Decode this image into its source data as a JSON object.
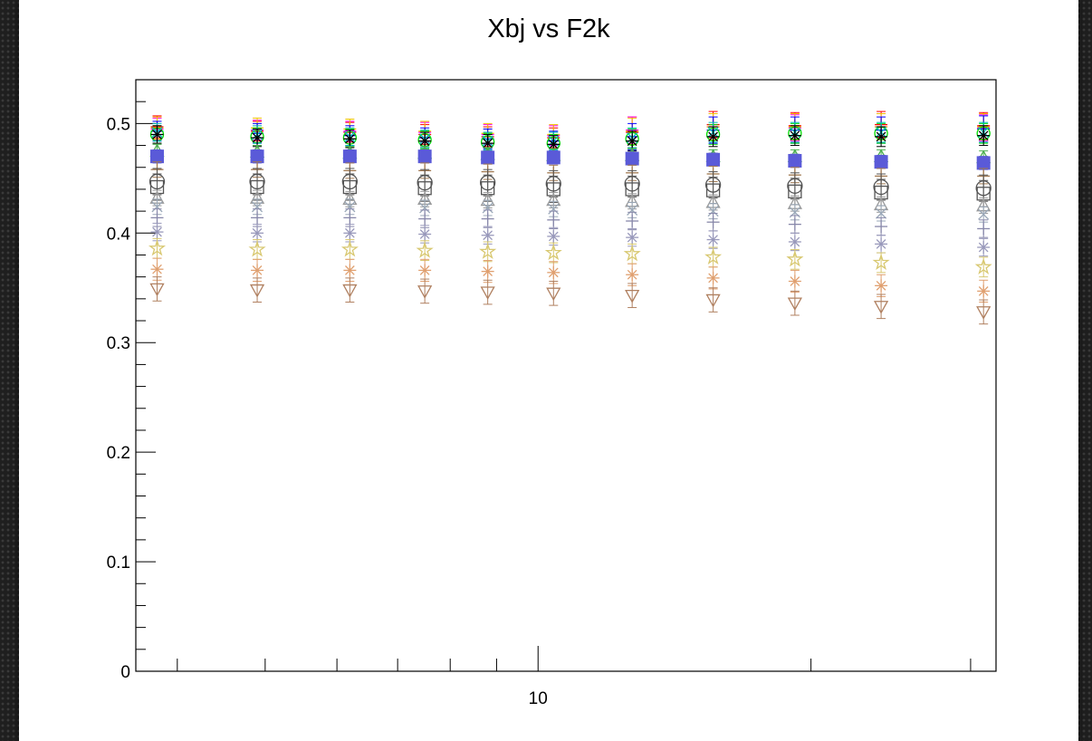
{
  "chart_data": {
    "type": "scatter",
    "title": "Xbj vs F2k",
    "xlabel": "",
    "ylabel": "",
    "x_scale": "log",
    "xlim": [
      3.6,
      32
    ],
    "ylim": [
      0,
      0.54
    ],
    "x_tick_labels": [
      {
        "value": 10,
        "label": "10"
      }
    ],
    "y_tick_labels": [
      {
        "value": 0,
        "label": "0"
      },
      {
        "value": 0.1,
        "label": "0.1"
      },
      {
        "value": 0.2,
        "label": "0.2"
      },
      {
        "value": 0.3,
        "label": "0.3"
      },
      {
        "value": 0.4,
        "label": "0.4"
      },
      {
        "value": 0.5,
        "label": "0.5"
      }
    ],
    "x": [
      3.8,
      4.9,
      6.2,
      7.5,
      8.8,
      10.4,
      12.7,
      15.6,
      19.2,
      23.9,
      31
    ],
    "grid": false,
    "series": [
      {
        "marker": "plus",
        "color": "#ff0000",
        "values": [
          0.497,
          0.493,
          0.492,
          0.49,
          0.488,
          0.487,
          0.492,
          0.499,
          0.498,
          0.499,
          0.498
        ],
        "errors": [
          0.01,
          0.009,
          0.009,
          0.009,
          0.009,
          0.009,
          0.014,
          0.012,
          0.012,
          0.012,
          0.012
        ]
      },
      {
        "marker": "plus",
        "color": "#ff00ff",
        "values": [
          0.495,
          0.494,
          0.493,
          0.492,
          0.49,
          0.489,
          0.494,
          0.497,
          0.496,
          0.497,
          0.496
        ],
        "errors": [
          0.01,
          0.009,
          0.009,
          0.009,
          0.009,
          0.009,
          0.012,
          0.012,
          0.012,
          0.012,
          0.012
        ]
      },
      {
        "marker": "plus",
        "color": "#f0c000",
        "values": [
          0.496,
          0.496,
          0.495,
          0.493,
          0.491,
          0.49,
          0.493,
          0.497,
          0.497,
          0.497,
          0.497
        ],
        "errors": [
          0.01,
          0.009,
          0.009,
          0.009,
          0.009,
          0.009,
          0.012,
          0.012,
          0.012,
          0.012,
          0.012
        ]
      },
      {
        "marker": "plus",
        "color": "#0000ff",
        "values": [
          0.493,
          0.491,
          0.489,
          0.487,
          0.486,
          0.484,
          0.488,
          0.494,
          0.494,
          0.494,
          0.495
        ],
        "errors": [
          0.009,
          0.009,
          0.009,
          0.009,
          0.009,
          0.009,
          0.012,
          0.012,
          0.012,
          0.012,
          0.012
        ]
      },
      {
        "marker": "circle",
        "color": "#00dd00",
        "values": [
          0.49,
          0.488,
          0.487,
          0.485,
          0.483,
          0.482,
          0.486,
          0.49,
          0.491,
          0.491,
          0.491
        ],
        "errors": [
          0.008,
          0.008,
          0.008,
          0.008,
          0.008,
          0.008,
          0.009,
          0.009,
          0.009,
          0.009,
          0.009
        ]
      },
      {
        "marker": "x",
        "color": "#00bbbb",
        "values": [
          0.492,
          0.49,
          0.488,
          0.486,
          0.484,
          0.484,
          0.487,
          0.492,
          0.492,
          0.492,
          0.492
        ],
        "errors": [
          0.008,
          0.008,
          0.008,
          0.008,
          0.008,
          0.008,
          0.009,
          0.009,
          0.009,
          0.009,
          0.009
        ]
      },
      {
        "marker": "star",
        "color": "#000000",
        "values": [
          0.49,
          0.487,
          0.486,
          0.484,
          0.482,
          0.481,
          0.484,
          0.488,
          0.489,
          0.488,
          0.489
        ],
        "errors": [
          0.008,
          0.008,
          0.008,
          0.008,
          0.008,
          0.008,
          0.009,
          0.009,
          0.009,
          0.009,
          0.009
        ]
      },
      {
        "marker": "triangle-up",
        "color": "#4caf50",
        "values": [
          0.475,
          0.474,
          0.473,
          0.473,
          0.472,
          0.471,
          0.471,
          0.47,
          0.47,
          0.47,
          0.469
        ],
        "errors": [
          0.006,
          0.006,
          0.006,
          0.006,
          0.006,
          0.006,
          0.006,
          0.006,
          0.006,
          0.006,
          0.006
        ]
      },
      {
        "marker": "square-filled",
        "color": "#5a5ad8",
        "values": [
          0.47,
          0.47,
          0.47,
          0.47,
          0.469,
          0.469,
          0.468,
          0.467,
          0.466,
          0.465,
          0.464
        ],
        "errors": [
          0.006,
          0.006,
          0.006,
          0.006,
          0.006,
          0.006,
          0.006,
          0.006,
          0.006,
          0.006,
          0.006
        ]
      },
      {
        "marker": "plus",
        "color": "#a07850",
        "values": [
          0.458,
          0.458,
          0.457,
          0.457,
          0.456,
          0.455,
          0.455,
          0.454,
          0.453,
          0.452,
          0.452
        ],
        "errors": [
          0.007,
          0.007,
          0.007,
          0.007,
          0.007,
          0.007,
          0.007,
          0.007,
          0.007,
          0.007,
          0.007
        ]
      },
      {
        "marker": "circle-open",
        "color": "#555555",
        "values": [
          0.447,
          0.447,
          0.447,
          0.446,
          0.446,
          0.445,
          0.445,
          0.444,
          0.443,
          0.442,
          0.441
        ],
        "errors": [
          0.012,
          0.012,
          0.012,
          0.012,
          0.012,
          0.012,
          0.012,
          0.012,
          0.012,
          0.012,
          0.012
        ]
      },
      {
        "marker": "square-open",
        "color": "#555555",
        "values": [
          0.442,
          0.442,
          0.442,
          0.441,
          0.441,
          0.44,
          0.44,
          0.439,
          0.438,
          0.437,
          0.436
        ],
        "errors": [
          0.012,
          0.012,
          0.012,
          0.012,
          0.012,
          0.012,
          0.012,
          0.012,
          0.012,
          0.012,
          0.012
        ]
      },
      {
        "marker": "triangle-up",
        "color": "#999999",
        "values": [
          0.432,
          0.432,
          0.431,
          0.431,
          0.43,
          0.43,
          0.429,
          0.428,
          0.427,
          0.426,
          0.425
        ],
        "errors": [
          0.007,
          0.007,
          0.007,
          0.007,
          0.007,
          0.007,
          0.007,
          0.007,
          0.007,
          0.007,
          0.007
        ]
      },
      {
        "marker": "x",
        "color": "#9aa8b8",
        "values": [
          0.424,
          0.424,
          0.424,
          0.423,
          0.423,
          0.422,
          0.421,
          0.42,
          0.419,
          0.418,
          0.417
        ],
        "errors": [
          0.007,
          0.007,
          0.007,
          0.007,
          0.007,
          0.007,
          0.007,
          0.007,
          0.007,
          0.007,
          0.007
        ]
      },
      {
        "marker": "plus",
        "color": "#8888aa",
        "values": [
          0.414,
          0.414,
          0.414,
          0.413,
          0.413,
          0.412,
          0.411,
          0.41,
          0.408,
          0.406,
          0.404
        ],
        "errors": [
          0.008,
          0.008,
          0.008,
          0.008,
          0.008,
          0.008,
          0.008,
          0.008,
          0.008,
          0.008,
          0.008
        ]
      },
      {
        "marker": "star",
        "color": "#9999bb",
        "values": [
          0.401,
          0.4,
          0.4,
          0.399,
          0.398,
          0.397,
          0.396,
          0.394,
          0.392,
          0.39,
          0.387
        ],
        "errors": [
          0.008,
          0.008,
          0.008,
          0.008,
          0.008,
          0.008,
          0.008,
          0.008,
          0.008,
          0.008,
          0.008
        ]
      },
      {
        "marker": "star-open",
        "color": "#d8c870",
        "values": [
          0.386,
          0.385,
          0.385,
          0.384,
          0.383,
          0.382,
          0.381,
          0.378,
          0.376,
          0.373,
          0.369
        ],
        "errors": [
          0.009,
          0.009,
          0.009,
          0.009,
          0.009,
          0.009,
          0.009,
          0.009,
          0.009,
          0.009,
          0.009
        ]
      },
      {
        "marker": "star",
        "color": "#e0a070",
        "values": [
          0.367,
          0.366,
          0.366,
          0.366,
          0.365,
          0.364,
          0.362,
          0.359,
          0.356,
          0.352,
          0.347
        ],
        "errors": [
          0.01,
          0.01,
          0.01,
          0.01,
          0.01,
          0.01,
          0.01,
          0.01,
          0.01,
          0.01,
          0.01
        ]
      },
      {
        "marker": "triangle-down",
        "color": "#b08060",
        "values": [
          0.349,
          0.348,
          0.348,
          0.347,
          0.346,
          0.345,
          0.343,
          0.339,
          0.336,
          0.333,
          0.328
        ],
        "errors": [
          0.011,
          0.011,
          0.011,
          0.011,
          0.011,
          0.011,
          0.011,
          0.011,
          0.011,
          0.011,
          0.011
        ]
      }
    ]
  }
}
